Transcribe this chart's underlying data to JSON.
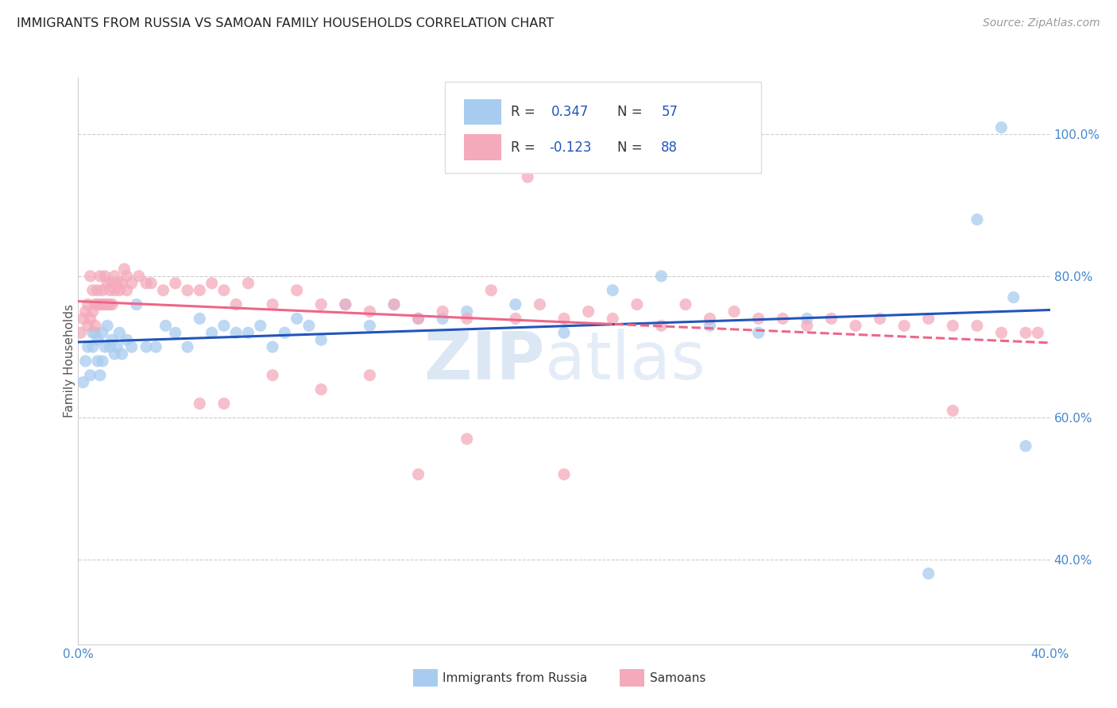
{
  "title": "IMMIGRANTS FROM RUSSIA VS SAMOAN FAMILY HOUSEHOLDS CORRELATION CHART",
  "source": "Source: ZipAtlas.com",
  "ylabel": "Family Households",
  "xlim": [
    0.0,
    0.4
  ],
  "ylim": [
    0.28,
    1.08
  ],
  "x_ticks": [
    0.0,
    0.05,
    0.1,
    0.15,
    0.2,
    0.25,
    0.3,
    0.35,
    0.4
  ],
  "x_tick_labels": [
    "0.0%",
    "",
    "",
    "",
    "",
    "",
    "",
    "",
    "40.0%"
  ],
  "y_ticks_right": [
    0.4,
    0.6,
    0.8,
    1.0
  ],
  "y_tick_labels_right": [
    "40.0%",
    "60.0%",
    "80.0%",
    "100.0%"
  ],
  "blue_color": "#A8CCF0",
  "pink_color": "#F4AABB",
  "trend_blue": "#2255BB",
  "trend_pink": "#EE6688",
  "watermark_zip": "ZIP",
  "watermark_atlas": "atlas",
  "blue_r": "0.347",
  "blue_n": "57",
  "pink_r": "-0.123",
  "pink_n": "88",
  "blue_scatter_x": [
    0.002,
    0.003,
    0.004,
    0.005,
    0.006,
    0.006,
    0.007,
    0.008,
    0.008,
    0.009,
    0.01,
    0.01,
    0.011,
    0.012,
    0.013,
    0.014,
    0.015,
    0.016,
    0.017,
    0.018,
    0.02,
    0.022,
    0.024,
    0.028,
    0.032,
    0.036,
    0.04,
    0.045,
    0.05,
    0.055,
    0.06,
    0.065,
    0.07,
    0.075,
    0.08,
    0.085,
    0.09,
    0.095,
    0.1,
    0.11,
    0.12,
    0.13,
    0.14,
    0.15,
    0.16,
    0.18,
    0.2,
    0.22,
    0.24,
    0.26,
    0.28,
    0.3,
    0.35,
    0.37,
    0.38,
    0.385,
    0.39
  ],
  "blue_scatter_y": [
    0.65,
    0.68,
    0.7,
    0.66,
    0.7,
    0.72,
    0.72,
    0.71,
    0.68,
    0.66,
    0.72,
    0.68,
    0.7,
    0.73,
    0.7,
    0.71,
    0.69,
    0.7,
    0.72,
    0.69,
    0.71,
    0.7,
    0.76,
    0.7,
    0.7,
    0.73,
    0.72,
    0.7,
    0.74,
    0.72,
    0.73,
    0.72,
    0.72,
    0.73,
    0.7,
    0.72,
    0.74,
    0.73,
    0.71,
    0.76,
    0.73,
    0.76,
    0.74,
    0.74,
    0.75,
    0.76,
    0.72,
    0.78,
    0.8,
    0.73,
    0.72,
    0.74,
    0.38,
    0.88,
    1.01,
    0.77,
    0.56
  ],
  "pink_scatter_x": [
    0.001,
    0.002,
    0.003,
    0.004,
    0.004,
    0.005,
    0.005,
    0.006,
    0.006,
    0.007,
    0.007,
    0.008,
    0.008,
    0.009,
    0.009,
    0.01,
    0.01,
    0.011,
    0.011,
    0.012,
    0.012,
    0.013,
    0.013,
    0.014,
    0.014,
    0.015,
    0.015,
    0.016,
    0.017,
    0.018,
    0.019,
    0.02,
    0.02,
    0.022,
    0.025,
    0.028,
    0.03,
    0.035,
    0.04,
    0.045,
    0.05,
    0.055,
    0.06,
    0.065,
    0.07,
    0.08,
    0.09,
    0.1,
    0.11,
    0.12,
    0.13,
    0.14,
    0.15,
    0.16,
    0.17,
    0.18,
    0.19,
    0.2,
    0.21,
    0.22,
    0.23,
    0.24,
    0.25,
    0.26,
    0.27,
    0.28,
    0.29,
    0.3,
    0.31,
    0.32,
    0.33,
    0.34,
    0.35,
    0.36,
    0.37,
    0.38,
    0.39,
    0.395,
    0.185,
    0.36,
    0.05,
    0.06,
    0.08,
    0.1,
    0.12,
    0.14,
    0.16,
    0.2
  ],
  "pink_scatter_y": [
    0.72,
    0.74,
    0.75,
    0.76,
    0.73,
    0.74,
    0.8,
    0.75,
    0.78,
    0.76,
    0.73,
    0.76,
    0.78,
    0.76,
    0.8,
    0.76,
    0.78,
    0.8,
    0.76,
    0.79,
    0.76,
    0.78,
    0.76,
    0.79,
    0.76,
    0.8,
    0.78,
    0.79,
    0.78,
    0.79,
    0.81,
    0.8,
    0.78,
    0.79,
    0.8,
    0.79,
    0.79,
    0.78,
    0.79,
    0.78,
    0.78,
    0.79,
    0.78,
    0.76,
    0.79,
    0.76,
    0.78,
    0.76,
    0.76,
    0.75,
    0.76,
    0.74,
    0.75,
    0.74,
    0.78,
    0.74,
    0.76,
    0.74,
    0.75,
    0.74,
    0.76,
    0.73,
    0.76,
    0.74,
    0.75,
    0.74,
    0.74,
    0.73,
    0.74,
    0.73,
    0.74,
    0.73,
    0.74,
    0.73,
    0.73,
    0.72,
    0.72,
    0.72,
    0.94,
    0.61,
    0.62,
    0.62,
    0.66,
    0.64,
    0.66,
    0.52,
    0.57,
    0.52
  ]
}
